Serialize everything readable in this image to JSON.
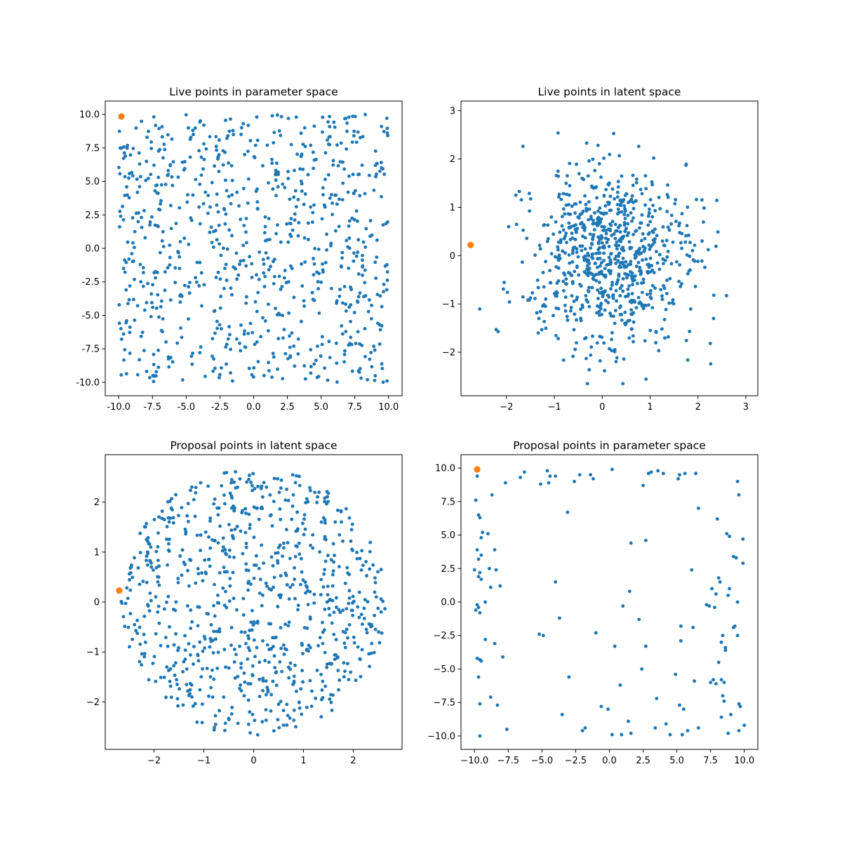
{
  "chart_data": [
    {
      "type": "scatter",
      "title": "Live points in parameter space",
      "xlabel": "",
      "ylabel": "",
      "xlim": [
        -11,
        11
      ],
      "ylim": [
        -11,
        11
      ],
      "xticks": [
        "-10.0",
        "-7.5",
        "-5.0",
        "-2.5",
        "0.0",
        "2.5",
        "5.0",
        "7.5",
        "10.0"
      ],
      "yticks": [
        "-10.0",
        "-7.5",
        "-5.0",
        "-2.5",
        "0.0",
        "2.5",
        "5.0",
        "7.5",
        "10.0"
      ],
      "grid": false,
      "series": [
        {
          "role": "points",
          "color": "#1f77b4",
          "distribution": "uniform-square",
          "range": [
            -10,
            10
          ],
          "count": 800
        },
        {
          "role": "highlight",
          "color": "#ff7f0e",
          "points": [
            [
              -9.8,
              9.85
            ]
          ]
        }
      ]
    },
    {
      "type": "scatter",
      "title": "Live points in latent space",
      "xlabel": "",
      "ylabel": "",
      "xlim": [
        -2.95,
        3.25
      ],
      "ylim": [
        -2.9,
        3.2
      ],
      "xticks": [
        "−2",
        "−1",
        "0",
        "1",
        "2",
        "3"
      ],
      "yticks": [
        "−2",
        "−1",
        "0",
        "1",
        "2",
        "3"
      ],
      "grid": false,
      "series": [
        {
          "role": "points",
          "color": "#1f77b4",
          "distribution": "gaussian-cloud",
          "center": [
            0.15,
            0.0
          ],
          "spread": [
            0.85,
            0.95
          ],
          "count": 800
        },
        {
          "role": "highlight",
          "color": "#ff7f0e",
          "points": [
            [
              -2.75,
              0.22
            ]
          ]
        }
      ]
    },
    {
      "type": "scatter",
      "title": "Proposal points in latent space",
      "xlabel": "",
      "ylabel": "",
      "xlim": [
        -2.98,
        2.98
      ],
      "ylim": [
        -2.95,
        2.95
      ],
      "xticks": [
        "−2",
        "−1",
        "0",
        "1",
        "2"
      ],
      "yticks": [
        "−2",
        "−1",
        "0",
        "1",
        "2"
      ],
      "grid": false,
      "series": [
        {
          "role": "points",
          "color": "#1f77b4",
          "distribution": "uniform-disc",
          "radius": 2.68,
          "count": 800
        },
        {
          "role": "highlight",
          "color": "#ff7f0e",
          "points": [
            [
              -2.7,
              0.23
            ]
          ]
        }
      ]
    },
    {
      "type": "scatter",
      "title": "Proposal points in parameter space",
      "xlabel": "",
      "ylabel": "",
      "xlim": [
        -11,
        11
      ],
      "ylim": [
        -11,
        11
      ],
      "xticks": [
        "−10.0",
        "−7.5",
        "−5.0",
        "−2.5",
        "0.0",
        "2.5",
        "5.0",
        "7.5",
        "10.0"
      ],
      "yticks": [
        "−10.0",
        "−7.5",
        "−5.0",
        "−2.5",
        "0.0",
        "2.5",
        "5.0",
        "7.5",
        "10.0"
      ],
      "grid": false,
      "series": [
        {
          "role": "points",
          "color": "#1f77b4",
          "points": [
            [
              -9.8,
              9.4
            ],
            [
              -9.9,
              7.6
            ],
            [
              -9.7,
              6.5
            ],
            [
              -9.6,
              6.3
            ],
            [
              -9.4,
              5.2
            ],
            [
              -9.5,
              4.8
            ],
            [
              -9.8,
              3.9
            ],
            [
              -9.5,
              3.5
            ],
            [
              -9.7,
              3.2
            ],
            [
              -10.0,
              2.4
            ],
            [
              -9.6,
              2.2
            ],
            [
              -9.7,
              1.9
            ],
            [
              -9.5,
              1.7
            ],
            [
              -9.8,
              -0.2
            ],
            [
              -9.9,
              -0.6
            ],
            [
              -9.7,
              -0.4
            ],
            [
              -9.6,
              -0.8
            ],
            [
              -9.8,
              -4.2
            ],
            [
              -9.6,
              -4.3
            ],
            [
              -9.5,
              -4.4
            ],
            [
              -9.7,
              -5.6
            ],
            [
              -9.6,
              -7.6
            ],
            [
              -9.6,
              -10.0
            ],
            [
              -9.2,
              -2.8
            ],
            [
              -9.2,
              0.0
            ],
            [
              -9.0,
              5.1
            ],
            [
              -8.7,
              8.0
            ],
            [
              -8.5,
              3.9
            ],
            [
              -8.9,
              2.5
            ],
            [
              -8.4,
              2.4
            ],
            [
              -8.8,
              1.1
            ],
            [
              -8.5,
              -3.1
            ],
            [
              -8.8,
              -7.1
            ],
            [
              -8.3,
              -7.7
            ],
            [
              -7.9,
              -4.1
            ],
            [
              -8.1,
              1.2
            ],
            [
              -7.7,
              8.9
            ],
            [
              -7.6,
              -9.5
            ],
            [
              -6.6,
              9.3
            ],
            [
              -6.3,
              9.7
            ],
            [
              -5.1,
              8.8
            ],
            [
              -4.6,
              9.8
            ],
            [
              -4.4,
              9.4
            ],
            [
              -4.5,
              8.9
            ],
            [
              -4.0,
              9.4
            ],
            [
              -5.2,
              -2.4
            ],
            [
              -4.9,
              -2.5
            ],
            [
              -4.0,
              1.5
            ],
            [
              -3.7,
              -1.2
            ],
            [
              -3.5,
              -8.4
            ],
            [
              -3.1,
              6.7
            ],
            [
              -3.0,
              -5.6
            ],
            [
              -2.6,
              9.0
            ],
            [
              -2.2,
              9.5
            ],
            [
              -2.0,
              -9.6
            ],
            [
              -1.8,
              -9.4
            ],
            [
              -1.4,
              9.5
            ],
            [
              -1.2,
              9.2
            ],
            [
              -1.0,
              -2.3
            ],
            [
              -0.6,
              -7.8
            ],
            [
              -0.1,
              -8.0
            ],
            [
              0.2,
              9.9
            ],
            [
              0.4,
              -3.3
            ],
            [
              0.2,
              -9.9
            ],
            [
              0.8,
              -6.2
            ],
            [
              1.0,
              -0.3
            ],
            [
              1.4,
              -8.9
            ],
            [
              1.5,
              0.8
            ],
            [
              1.6,
              4.4
            ],
            [
              0.9,
              -9.9
            ],
            [
              1.6,
              -9.8
            ],
            [
              2.2,
              -1.3
            ],
            [
              2.4,
              -5.0
            ],
            [
              2.5,
              8.7
            ],
            [
              2.7,
              4.6
            ],
            [
              2.7,
              -3.3
            ],
            [
              2.9,
              9.6
            ],
            [
              3.1,
              9.7
            ],
            [
              3.4,
              -9.4
            ],
            [
              3.5,
              -7.2
            ],
            [
              3.6,
              9.8
            ],
            [
              4.0,
              9.6
            ],
            [
              4.2,
              -9.1
            ],
            [
              4.5,
              -9.9
            ],
            [
              4.9,
              -5.4
            ],
            [
              5.1,
              9.2
            ],
            [
              5.2,
              9.5
            ],
            [
              5.3,
              -1.8
            ],
            [
              5.3,
              -2.9
            ],
            [
              5.2,
              -7.7
            ],
            [
              5.5,
              -8.0
            ],
            [
              5.6,
              9.6
            ],
            [
              5.4,
              -9.9
            ],
            [
              5.8,
              -9.6
            ],
            [
              6.1,
              2.4
            ],
            [
              6.2,
              -1.9
            ],
            [
              6.3,
              -5.9
            ],
            [
              6.4,
              9.6
            ],
            [
              6.6,
              7.0
            ],
            [
              6.6,
              -9.4
            ],
            [
              7.2,
              -0.2
            ],
            [
              7.4,
              -0.3
            ],
            [
              7.5,
              -6.0
            ],
            [
              7.7,
              -5.8
            ],
            [
              7.6,
              1.0
            ],
            [
              7.8,
              -0.4
            ],
            [
              7.9,
              0.6
            ],
            [
              7.9,
              -6.1
            ],
            [
              8.0,
              6.2
            ],
            [
              8.1,
              1.8
            ],
            [
              8.2,
              1.5
            ],
            [
              8.1,
              -4.5
            ],
            [
              8.3,
              -3.0
            ],
            [
              8.4,
              -2.5
            ],
            [
              8.3,
              -5.8
            ],
            [
              8.3,
              -8.6
            ],
            [
              8.5,
              -6.0
            ],
            [
              8.4,
              -7.0
            ],
            [
              8.5,
              -7.4
            ],
            [
              8.6,
              -3.4
            ],
            [
              8.6,
              -3.6
            ],
            [
              8.7,
              5.1
            ],
            [
              8.9,
              4.9
            ],
            [
              8.9,
              1.0
            ],
            [
              8.8,
              0.5
            ],
            [
              9.0,
              -8.4
            ],
            [
              8.8,
              -9.8
            ],
            [
              9.2,
              3.4
            ],
            [
              9.4,
              3.3
            ],
            [
              9.5,
              9.0
            ],
            [
              9.6,
              8.0
            ],
            [
              9.5,
              0.0
            ],
            [
              9.3,
              -1.8
            ],
            [
              9.5,
              -2.5
            ],
            [
              9.6,
              -7.6
            ],
            [
              9.7,
              -7.8
            ],
            [
              9.6,
              -9.6
            ],
            [
              9.9,
              4.7
            ],
            [
              9.9,
              2.9
            ],
            [
              10.0,
              -9.2
            ],
            [
              9.2,
              -1.9
            ]
          ]
        },
        {
          "role": "highlight",
          "color": "#ff7f0e",
          "points": [
            [
              -9.8,
              9.9
            ]
          ]
        }
      ]
    }
  ]
}
